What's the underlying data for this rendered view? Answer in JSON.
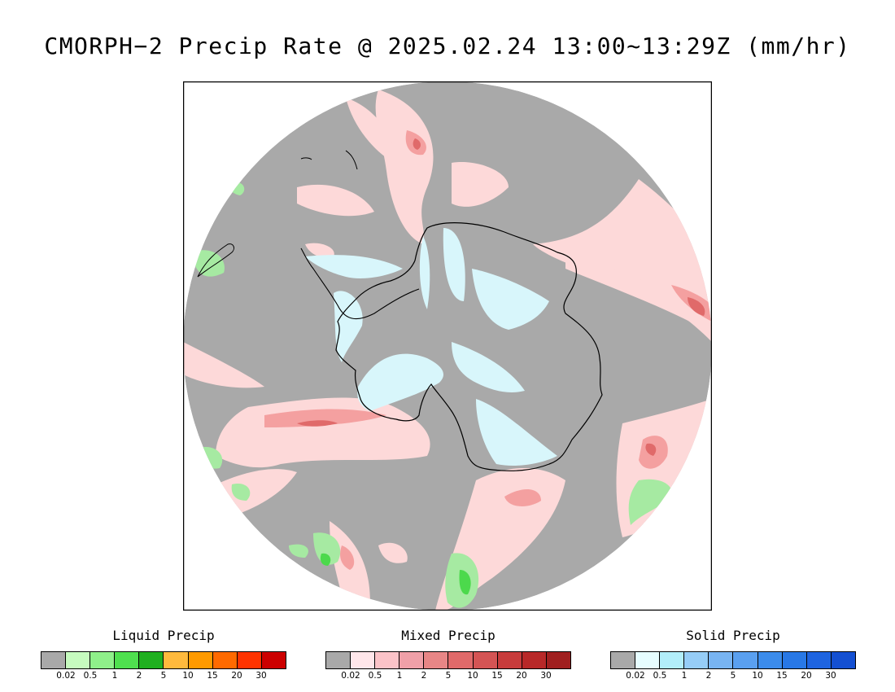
{
  "title": "CMORPH−2 Precip Rate @ 2025.02.24 13:00~13:29Z (mm/hr)",
  "colors": {
    "background_gray": "#a9a9a9",
    "mixed_light": "#fdd9d9",
    "mixed_mid": "#f4a0a0",
    "mixed_strong": "#e06a6a",
    "solid_light": "#d8f6fb",
    "liquid_light": "#a6eaa2",
    "liquid_mid": "#4cd94c",
    "coastline": "#000000"
  },
  "legends": [
    {
      "title": "Liquid Precip",
      "colors": [
        "#a9a9a9",
        "#c6fbbf",
        "#8ff08a",
        "#4fe04f",
        "#20b020",
        "#ffba3d",
        "#ff9a00",
        "#ff6a00",
        "#ff3300",
        "#cc0000"
      ],
      "ticks": [
        "0.02",
        "0.5",
        "1",
        "2",
        "5",
        "10",
        "15",
        "20",
        "30"
      ]
    },
    {
      "title": "Mixed Precip",
      "colors": [
        "#a9a9a9",
        "#ffe6ea",
        "#fbc3c8",
        "#f0a0a8",
        "#e88686",
        "#e06a6a",
        "#d45454",
        "#c83c3c",
        "#b82828",
        "#a01f1f"
      ],
      "ticks": [
        "0.02",
        "0.5",
        "1",
        "2",
        "5",
        "10",
        "15",
        "20",
        "30"
      ]
    },
    {
      "title": "Solid Precip",
      "colors": [
        "#a9a9a9",
        "#e6fdff",
        "#b2eefa",
        "#96cdf7",
        "#78b4f2",
        "#5aa0f0",
        "#3c8ceb",
        "#2878e6",
        "#1e64e0",
        "#1450d2"
      ],
      "ticks": [
        "0.02",
        "0.5",
        "1",
        "2",
        "5",
        "10",
        "15",
        "20",
        "30"
      ]
    }
  ]
}
